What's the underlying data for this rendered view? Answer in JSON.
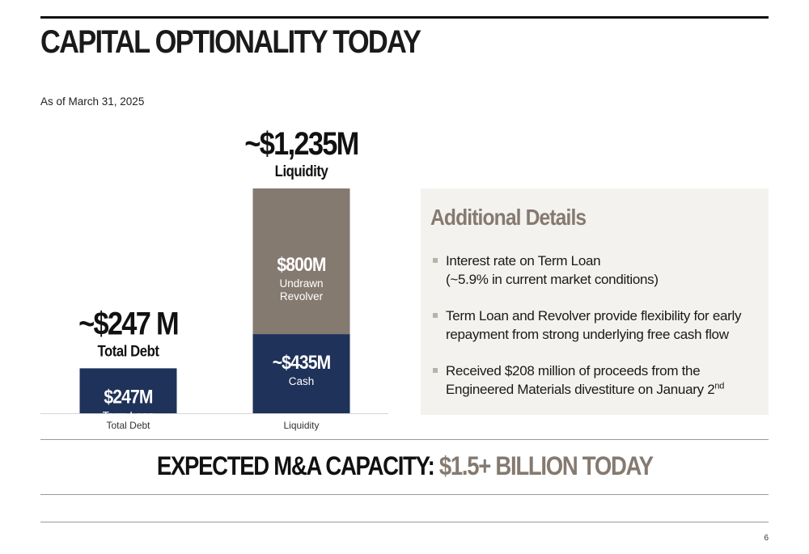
{
  "title": "CAPITAL OPTIONALITY TODAY",
  "as_of": "As of March 31, 2025",
  "colors": {
    "navy": "#1f3259",
    "taupe": "#857a70",
    "panel": "#f4f2ef"
  },
  "chart_data": {
    "type": "bar",
    "stacked": true,
    "categories": [
      "Total Debt",
      "Liquidity"
    ],
    "unit": "$M",
    "grid": false,
    "series": [
      {
        "key": "base",
        "color": "#1f3259",
        "values": [
          247,
          435
        ],
        "value_labels": [
          "$247M",
          "~$435M"
        ],
        "sub_labels": [
          "Term Loan",
          "Cash"
        ]
      },
      {
        "key": "top",
        "color": "#857a70",
        "values": [
          0,
          800
        ],
        "value_labels": [
          "",
          "$800M"
        ],
        "sub_labels": [
          "",
          "Undrawn Revolver"
        ]
      }
    ],
    "totals": [
      {
        "value": 247,
        "label": "~$247 M",
        "sublabel": "Total Debt"
      },
      {
        "value": 1235,
        "label": "~$1,235M",
        "sublabel": "Liquidity"
      }
    ]
  },
  "details": {
    "title": "Additional Details",
    "items": [
      {
        "lines": [
          "Interest rate on Term Loan",
          "(~5.9% in current market conditions)"
        ]
      },
      {
        "lines": [
          "Term Loan and Revolver provide flexibility for early",
          "repayment from strong underlying free cash flow"
        ]
      },
      {
        "lines": [
          "Received $208 million of proceeds from the",
          "Engineered Materials divestiture on January 2"
        ],
        "sup": "nd"
      }
    ]
  },
  "capacity": {
    "lead": "EXPECTED M&A CAPACITY:",
    "accent": "$1.5+ BILLION TODAY"
  },
  "page_number": "6"
}
